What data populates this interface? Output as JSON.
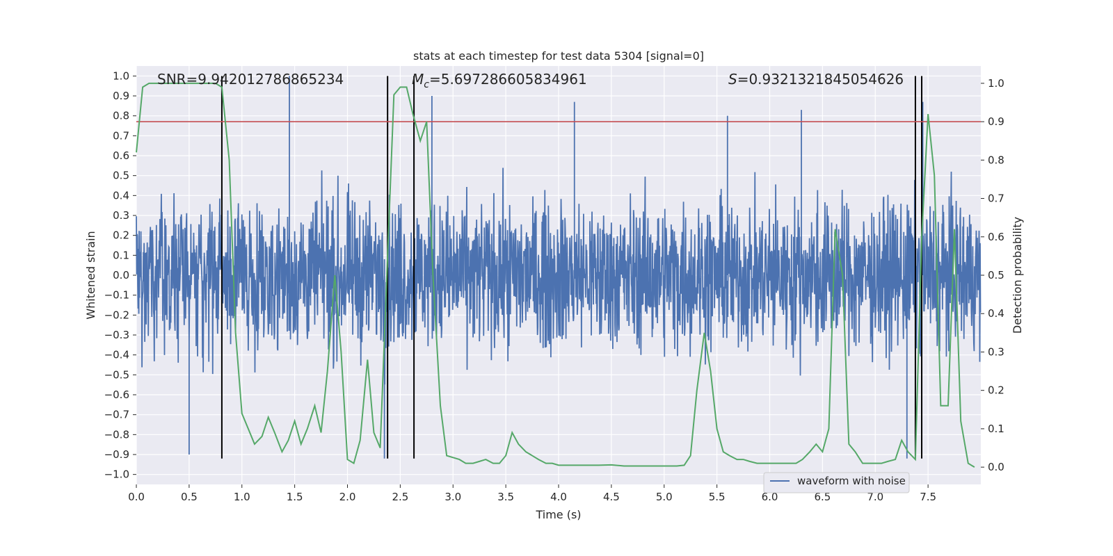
{
  "chart_data": {
    "type": "line",
    "title": "stats at each timestep for test data 5304 [signal=0]",
    "xlabel": "Time (s)",
    "ylabel_left": "Whitened strain",
    "ylabel_right": "Detection probability",
    "xlim": [
      0.0,
      8.0
    ],
    "ylim_left": [
      -1.05,
      1.05
    ],
    "ylim_right": [
      -0.045,
      1.045
    ],
    "x_ticks": [
      0.0,
      0.5,
      1.0,
      1.5,
      2.0,
      2.5,
      3.0,
      3.5,
      4.0,
      4.5,
      5.0,
      5.5,
      6.0,
      6.5,
      7.0,
      7.5
    ],
    "x_tick_labels": [
      "0.0",
      "0.5",
      "1.0",
      "1.5",
      "2.0",
      "2.5",
      "3.0",
      "3.5",
      "4.0",
      "4.5",
      "5.0",
      "5.5",
      "6.0",
      "6.5",
      "7.0",
      "7.5"
    ],
    "y_left_ticks": [
      1.0,
      0.9,
      0.8,
      0.7,
      0.6,
      0.5,
      0.4,
      0.3,
      0.2,
      0.1,
      0.0,
      -0.1,
      -0.2,
      -0.3,
      -0.4,
      -0.5,
      -0.6,
      -0.7,
      -0.8,
      -0.9,
      -1.0
    ],
    "y_left_tick_labels": [
      "1.0",
      "0.9",
      "0.8",
      "0.7",
      "0.6",
      "0.5",
      "0.4",
      "0.3",
      "0.2",
      "0.1",
      "0.0",
      "−0.1",
      "−0.2",
      "−0.3",
      "−0.4",
      "−0.5",
      "−0.6",
      "−0.7",
      "−0.8",
      "−0.9",
      "−1.0"
    ],
    "y_right_ticks": [
      1.0,
      0.9,
      0.8,
      0.7,
      0.6,
      0.5,
      0.4,
      0.3,
      0.2,
      0.1,
      0.0
    ],
    "y_right_tick_labels": [
      "1.0",
      "0.9",
      "0.8",
      "0.7",
      "0.6",
      "0.5",
      "0.4",
      "0.3",
      "0.2",
      "0.1",
      "0.0"
    ],
    "annotations": {
      "snr": "SNR=9.942012786865234",
      "mc_symbol": "M",
      "mc_sub": "c",
      "mc_value": "=5.697286605834961",
      "s_symbol": "S",
      "s_value": "=0.9321321845054626"
    },
    "threshold_line": {
      "y_right": 0.9,
      "color": "#c44e52"
    },
    "vertical_lines_x": [
      0.81,
      2.38,
      2.63,
      7.38,
      7.44
    ],
    "vertical_line_y_range": [
      -0.92,
      1.0
    ],
    "legend": {
      "label": "waveform with noise",
      "placement": "lower-right"
    },
    "series": [
      {
        "name": "waveform with noise",
        "axis": "left",
        "color": "#4c72b0",
        "kind": "noise",
        "approx_envelope": [
          -0.6,
          0.6
        ],
        "peaks_x": [
          0.5,
          1.45,
          2.35,
          2.63,
          2.8,
          4.15,
          5.6,
          6.3,
          7.3,
          7.45
        ],
        "peaks_y": [
          -0.9,
          1.0,
          -0.92,
          0.78,
          0.9,
          0.87,
          0.8,
          0.83,
          -0.92,
          0.87
        ]
      },
      {
        "name": "",
        "axis": "right",
        "color": "#55a868",
        "kind": "line",
        "x": [
          0.0,
          0.06,
          0.12,
          0.19,
          0.25,
          0.31,
          0.38,
          0.44,
          0.5,
          0.56,
          0.62,
          0.69,
          0.75,
          0.81,
          0.88,
          0.94,
          1.0,
          1.06,
          1.12,
          1.19,
          1.25,
          1.31,
          1.38,
          1.44,
          1.5,
          1.56,
          1.62,
          1.69,
          1.75,
          1.81,
          1.88,
          1.94,
          2.0,
          2.06,
          2.12,
          2.19,
          2.25,
          2.31,
          2.38,
          2.44,
          2.5,
          2.56,
          2.62,
          2.69,
          2.75,
          2.81,
          2.88,
          2.94,
          3.0,
          3.06,
          3.12,
          3.19,
          3.25,
          3.31,
          3.38,
          3.44,
          3.5,
          3.56,
          3.62,
          3.69,
          3.75,
          3.81,
          3.88,
          3.94,
          4.0,
          4.12,
          4.25,
          4.38,
          4.5,
          4.62,
          4.75,
          4.88,
          5.0,
          5.12,
          5.19,
          5.25,
          5.31,
          5.38,
          5.44,
          5.5,
          5.56,
          5.62,
          5.69,
          5.75,
          5.81,
          5.88,
          5.94,
          6.0,
          6.06,
          6.12,
          6.19,
          6.25,
          6.31,
          6.38,
          6.44,
          6.5,
          6.56,
          6.62,
          6.69,
          6.75,
          6.81,
          6.88,
          6.94,
          7.0,
          7.06,
          7.12,
          7.19,
          7.25,
          7.31,
          7.38,
          7.44,
          7.5,
          7.56,
          7.62,
          7.69,
          7.75,
          7.81,
          7.88,
          7.94
        ],
        "y": [
          0.82,
          0.99,
          1.0,
          1.0,
          1.0,
          1.0,
          1.0,
          1.0,
          1.0,
          1.0,
          1.0,
          1.0,
          1.0,
          0.99,
          0.8,
          0.35,
          0.14,
          0.1,
          0.06,
          0.08,
          0.13,
          0.09,
          0.04,
          0.07,
          0.12,
          0.06,
          0.1,
          0.16,
          0.09,
          0.25,
          0.5,
          0.3,
          0.02,
          0.01,
          0.07,
          0.28,
          0.09,
          0.05,
          0.55,
          0.97,
          0.99,
          0.99,
          0.92,
          0.85,
          0.9,
          0.5,
          0.16,
          0.03,
          0.025,
          0.02,
          0.01,
          0.01,
          0.015,
          0.02,
          0.01,
          0.01,
          0.03,
          0.09,
          0.06,
          0.04,
          0.03,
          0.02,
          0.01,
          0.01,
          0.005,
          0.005,
          0.005,
          0.005,
          0.006,
          0.003,
          0.003,
          0.003,
          0.003,
          0.003,
          0.005,
          0.03,
          0.2,
          0.35,
          0.25,
          0.1,
          0.04,
          0.03,
          0.02,
          0.02,
          0.015,
          0.01,
          0.01,
          0.01,
          0.01,
          0.01,
          0.01,
          0.01,
          0.02,
          0.04,
          0.06,
          0.04,
          0.1,
          0.62,
          0.5,
          0.06,
          0.04,
          0.01,
          0.01,
          0.01,
          0.01,
          0.015,
          0.02,
          0.07,
          0.04,
          0.02,
          0.6,
          0.92,
          0.76,
          0.16,
          0.16,
          0.62,
          0.12,
          0.01,
          0.0
        ]
      }
    ]
  }
}
